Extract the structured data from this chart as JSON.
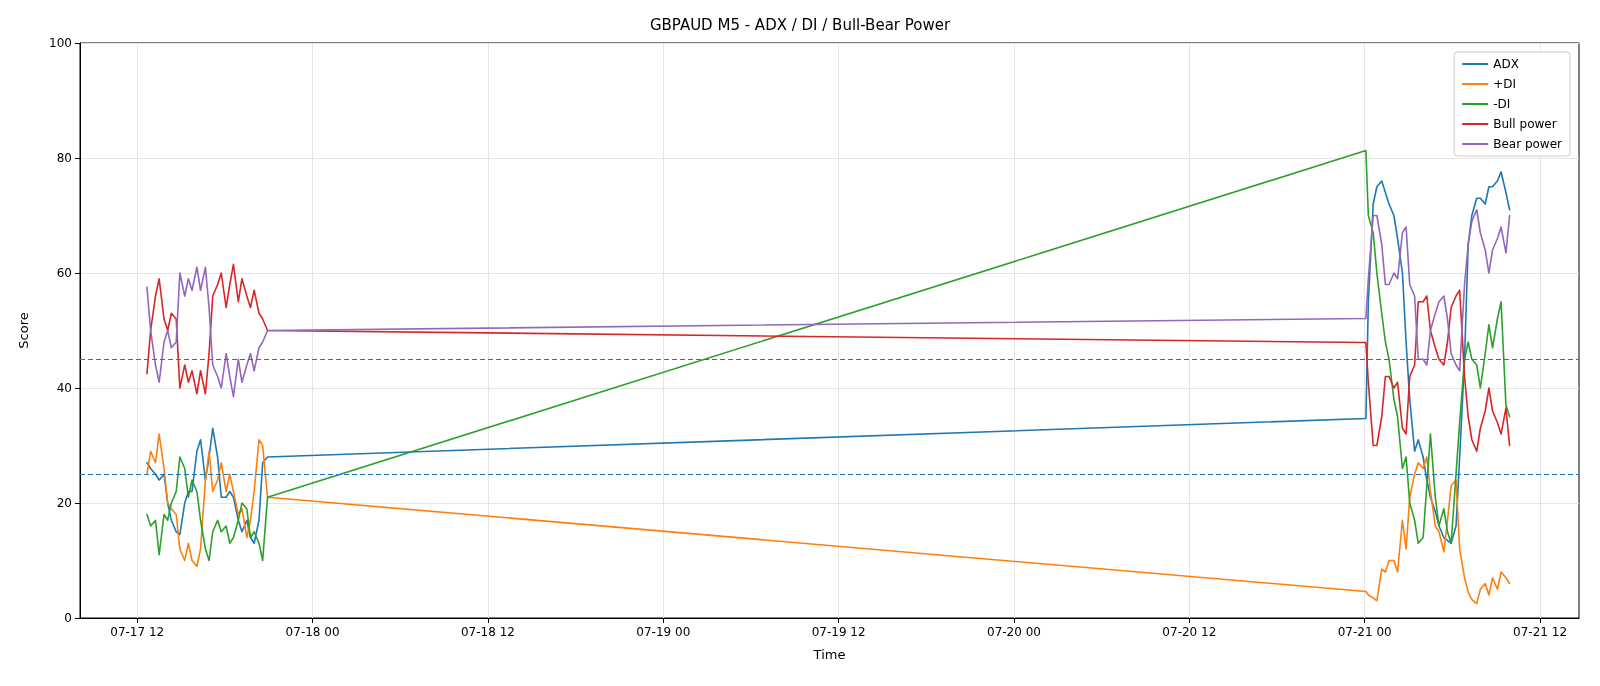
{
  "chart_data": {
    "type": "line",
    "title": "GBPAUD M5 - ADX / DI / Bull-Bear Power",
    "xlabel": "Time",
    "ylabel": "Score",
    "x": [
      "--07-17T12:40",
      "--07-17T12:55",
      "--07-17T13:15",
      "--07-17T13:30",
      "--07-17T13:50",
      "--07-17T14:05",
      "--07-17T14:20",
      "--07-17T14:40",
      "--07-17T14:55",
      "--07-17T15:15",
      "--07-17T15:30",
      "--07-17T15:45",
      "--07-17T16:05",
      "--07-17T16:20",
      "--07-17T16:40",
      "--07-17T16:55",
      "--07-17T17:10",
      "--07-17T17:30",
      "--07-17T17:45",
      "--07-17T18:05",
      "--07-17T18:20",
      "--07-17T18:35",
      "--07-17T18:55",
      "--07-17T19:10",
      "--07-17T19:30",
      "--07-17T19:45",
      "--07-17T20:00",
      "--07-17T20:20",
      "--07-17T20:35",
      "--07-17T20:55",
      "--07-21T00:05",
      "--07-21T00:15",
      "--07-21T00:35",
      "--07-21T00:50",
      "--07-21T01:10",
      "--07-21T01:25",
      "--07-21T01:40",
      "--07-21T02:00",
      "--07-21T02:15",
      "--07-21T02:35",
      "--07-21T02:50",
      "--07-21T03:05",
      "--07-21T03:25",
      "--07-21T03:40",
      "--07-21T04:00",
      "--07-21T04:15",
      "--07-21T04:30",
      "--07-21T04:50",
      "--07-21T05:05",
      "--07-21T05:25",
      "--07-21T05:40",
      "--07-21T05:55",
      "--07-21T06:15",
      "--07-21T06:30",
      "--07-21T06:50",
      "--07-21T07:05",
      "--07-21T07:20",
      "--07-21T07:40",
      "--07-21T07:55",
      "--07-21T08:15",
      "--07-21T08:30",
      "--07-21T08:45",
      "--07-21T09:05",
      "--07-21T09:20",
      "--07-21T09:40",
      "--07-21T09:55"
    ],
    "series": [
      {
        "name": "ADX",
        "color": "#1f77b4",
        "values": [
          27,
          26,
          25,
          24,
          25,
          20,
          17,
          15,
          14.5,
          20,
          22,
          22,
          29,
          31,
          24,
          28,
          33,
          28,
          21,
          21,
          22,
          21,
          17,
          15,
          17,
          14,
          13,
          17,
          27,
          28,
          34.7,
          55,
          72,
          75,
          76,
          74,
          72,
          70,
          66,
          60,
          48,
          38,
          29,
          31,
          28,
          24,
          21,
          18.5,
          16,
          14,
          13.5,
          13,
          16,
          28,
          45,
          65,
          70,
          73,
          73,
          72,
          75,
          75,
          76,
          77.6,
          74,
          71
        ]
      },
      {
        "name": "+DI",
        "color": "#ff7f0e",
        "values": [
          25,
          29,
          27,
          32,
          26,
          20,
          19,
          18,
          12,
          10,
          13,
          10,
          9,
          12,
          24,
          29,
          22,
          24,
          27,
          22,
          25,
          22,
          18,
          19,
          14,
          17,
          22,
          31,
          30,
          21,
          4.6,
          4,
          3.5,
          3,
          8.5,
          8,
          10,
          10,
          8,
          17,
          12,
          21,
          25,
          27,
          26,
          28,
          22,
          16,
          15,
          11.5,
          17,
          23,
          24,
          12,
          7,
          4.5,
          3.2,
          2.5,
          5,
          6,
          4,
          7,
          5,
          8,
          7,
          6
        ]
      },
      {
        "name": "-DI",
        "color": "#2ca02c",
        "values": [
          18,
          16,
          17,
          11,
          18,
          17,
          20,
          22,
          28,
          26,
          21,
          24,
          22,
          17,
          12,
          10,
          15,
          17,
          15,
          16,
          13,
          14,
          17,
          20,
          19,
          14,
          15,
          13,
          10,
          21,
          81.3,
          70,
          67,
          60,
          53,
          48,
          45,
          38,
          35,
          26,
          28,
          20,
          17,
          13,
          14,
          23,
          32,
          21,
          16,
          19,
          15,
          13,
          25,
          34,
          45,
          48,
          45,
          44,
          40,
          46,
          51,
          47,
          52,
          55,
          37,
          35
        ]
      },
      {
        "name": "Bull power",
        "color": "#d62728",
        "values": [
          42.5,
          50,
          56,
          59,
          52,
          50,
          53,
          52,
          40,
          44,
          41,
          43,
          39,
          43,
          39,
          46,
          56,
          58,
          60,
          54,
          58,
          61.5,
          55,
          59,
          56,
          54,
          57,
          53,
          52,
          50,
          47.9,
          41,
          30,
          30,
          35,
          42,
          42,
          40,
          41,
          33,
          32,
          42,
          44,
          55,
          55,
          56,
          50,
          47,
          45,
          44,
          48,
          54,
          56,
          57,
          42,
          35,
          31,
          29,
          33,
          36,
          40,
          36,
          34,
          32,
          36.5,
          30
        ]
      },
      {
        "name": "Bear power",
        "color": "#9467bd",
        "values": [
          57.5,
          50,
          44,
          41,
          48,
          50,
          47,
          48,
          60,
          56,
          59,
          57,
          61,
          57,
          61,
          54,
          44,
          42,
          40,
          46,
          42,
          38.5,
          45,
          41,
          44,
          46,
          43,
          47,
          48,
          50,
          52.1,
          59,
          70,
          70,
          65,
          58,
          58,
          60,
          59,
          67,
          68,
          58,
          56,
          45,
          45,
          44,
          50,
          53,
          55,
          56,
          52,
          46,
          44,
          43,
          58,
          65,
          69,
          71,
          67,
          64,
          60,
          64,
          66,
          68,
          63.5,
          70
        ]
      }
    ],
    "xlim": [
      "--07-17T08:05",
      "--07-21T14:40"
    ],
    "xticks": [
      {
        "value": "--07-17T12:00",
        "label": "07-17 12"
      },
      {
        "value": "--07-18T00:00",
        "label": "07-18 00"
      },
      {
        "value": "--07-18T12:00",
        "label": "07-18 12"
      },
      {
        "value": "--07-19T00:00",
        "label": "07-19 00"
      },
      {
        "value": "--07-19T12:00",
        "label": "07-19 12"
      },
      {
        "value": "--07-20T00:00",
        "label": "07-20 00"
      },
      {
        "value": "--07-20T12:00",
        "label": "07-20 12"
      },
      {
        "value": "--07-21T00:00",
        "label": "07-21 00"
      },
      {
        "value": "--07-21T12:00",
        "label": "07-21 12"
      }
    ],
    "ylim": [
      0,
      100
    ],
    "yticks": [
      0,
      20,
      40,
      60,
      80,
      100
    ],
    "ref_lines": [
      {
        "axis": "y",
        "value": 45,
        "color": "#1f77b4",
        "line_style": "dashed"
      },
      {
        "axis": "y",
        "value": 25,
        "color": "#1f77b4",
        "line_style": "dashed"
      }
    ],
    "grid": true,
    "legend": "top right",
    "marker": "none",
    "line_style": "solid"
  }
}
